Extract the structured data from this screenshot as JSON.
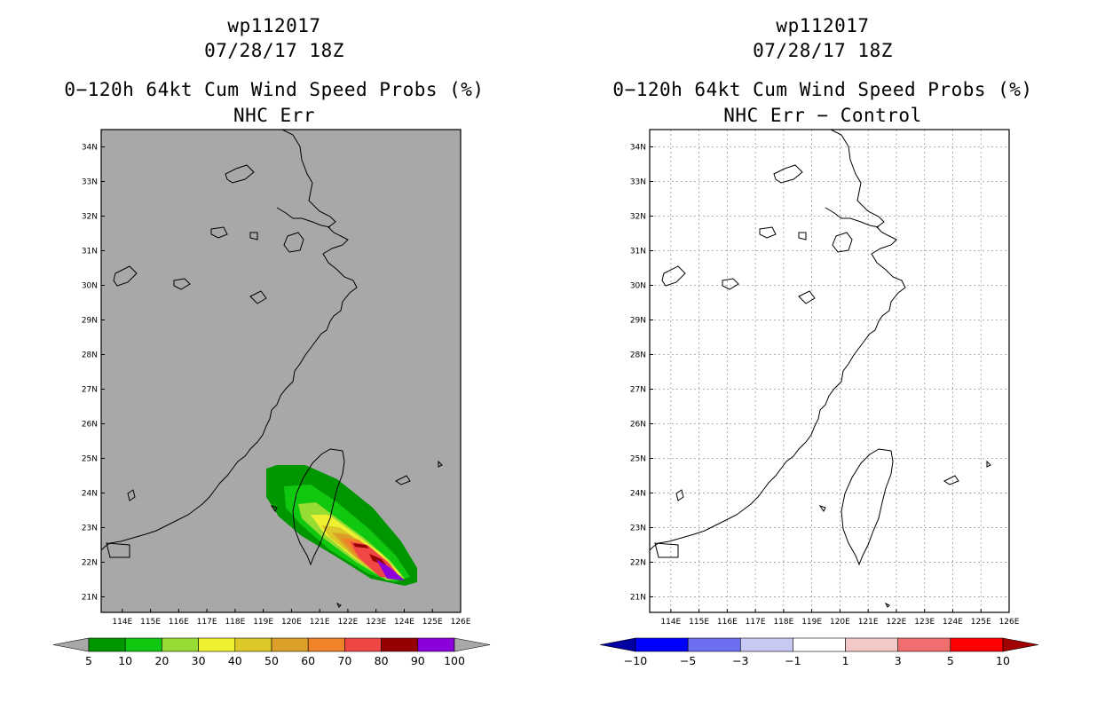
{
  "storm_id": "wp112017",
  "datetime": "07/28/17 18Z",
  "product_title": "0−120h 64kt Cum Wind Speed Probs (%)",
  "lat_labels": [
    "21N",
    "22N",
    "23N",
    "24N",
    "25N",
    "26N",
    "27N",
    "28N",
    "29N",
    "30N",
    "31N",
    "32N",
    "33N",
    "34N"
  ],
  "lon_labels": [
    "114E",
    "115E",
    "116E",
    "117E",
    "118E",
    "119E",
    "120E",
    "121E",
    "122E",
    "123E",
    "124E",
    "125E",
    "126E"
  ],
  "left_panel": {
    "subtitle": "NHC Err",
    "colorbar": {
      "labels": [
        "5",
        "10",
        "20",
        "30",
        "40",
        "50",
        "60",
        "70",
        "80",
        "90",
        "100"
      ],
      "colors": [
        "#a8a8a8",
        "#009600",
        "#10c810",
        "#96dc32",
        "#f0f032",
        "#dcc828",
        "#dca028",
        "#f08228",
        "#f04646",
        "#960000",
        "#8c00dc",
        "#a8a8a8"
      ]
    },
    "colors": {
      "background": "#a8a8a8"
    }
  },
  "right_panel": {
    "subtitle": "NHC Err − Control",
    "colorbar": {
      "labels": [
        "−10",
        "−5",
        "−3",
        "−1",
        "1",
        "3",
        "5",
        "10"
      ],
      "colors": [
        "#0000a0",
        "#0000ff",
        "#6e6ef0",
        "#c8c8f5",
        "#ffffff",
        "#f5c8c8",
        "#f06e6e",
        "#ff0000",
        "#a00000"
      ]
    },
    "colors": {
      "background": "#ffffff"
    }
  }
}
